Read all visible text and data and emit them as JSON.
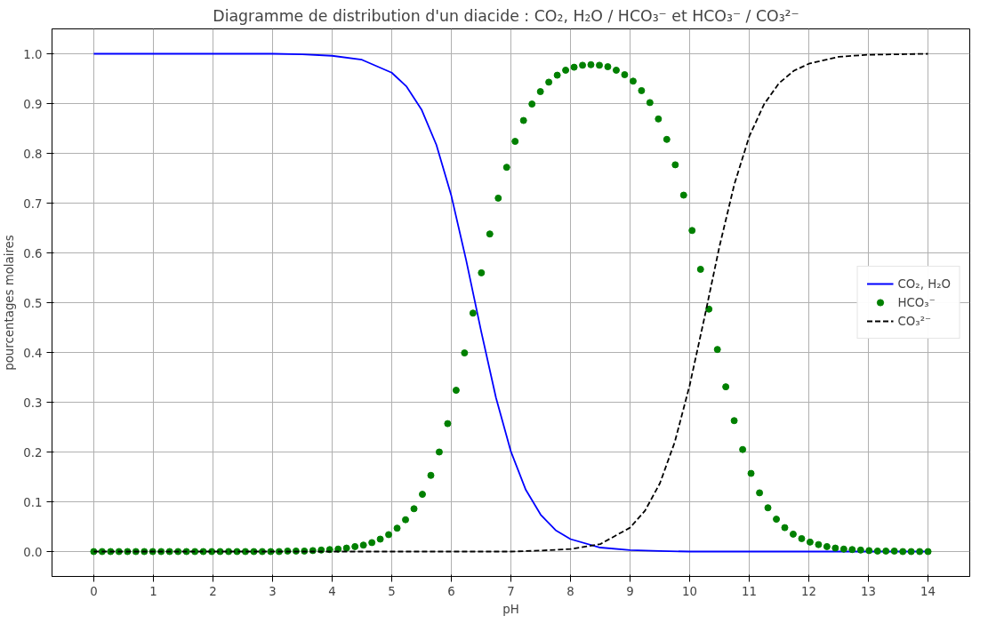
{
  "chart_data": {
    "type": "line",
    "title": "Diagramme de distribution d'un diacide : CO₂, H₂O / HCO₃⁻  et HCO₃⁻  / CO₃²⁻",
    "xlabel": "pH",
    "ylabel": "pourcentages molaires",
    "xlim": [
      -0.7,
      14.7
    ],
    "ylim": [
      -0.05,
      1.05
    ],
    "xticks": [
      0,
      1,
      2,
      3,
      4,
      5,
      6,
      7,
      8,
      9,
      10,
      11,
      12,
      13,
      14
    ],
    "yticks": [
      {
        "value": 0,
        "label": "0.0"
      },
      {
        "value": 0.1,
        "label": "0.1"
      },
      {
        "value": 0.2,
        "label": "0.2"
      },
      {
        "value": 0.3,
        "label": "0.3"
      },
      {
        "value": 0.4,
        "label": "0.4"
      },
      {
        "value": 0.5,
        "label": "0.5"
      },
      {
        "value": 0.6,
        "label": "0.6"
      },
      {
        "value": 0.7,
        "label": "0.7"
      },
      {
        "value": 0.8,
        "label": "0.8"
      },
      {
        "value": 0.9,
        "label": "0.9"
      },
      {
        "value": 1,
        "label": "1.0"
      }
    ],
    "grid": true,
    "legend": "right",
    "series": [
      {
        "name": "CO₂, H₂O",
        "color": "#0000ff",
        "line_style": "solid",
        "x": [
          0,
          1,
          2,
          3,
          3.5,
          4,
          4.5,
          5,
          5.25,
          5.5,
          5.75,
          6,
          6.25,
          6.5,
          6.75,
          7,
          7.25,
          7.5,
          7.75,
          8,
          8.5,
          9,
          9.5,
          10,
          11,
          12,
          13,
          14
        ],
        "values": [
          1.0,
          1.0,
          1.0,
          1.0,
          0.999,
          0.996,
          0.988,
          0.962,
          0.934,
          0.888,
          0.817,
          0.715,
          0.585,
          0.443,
          0.309,
          0.201,
          0.124,
          0.074,
          0.043,
          0.025,
          0.008,
          0.003,
          0.001,
          0.0,
          0.0,
          0.0,
          0.0,
          0.0
        ]
      },
      {
        "name": "HCO₃⁻",
        "type": "scatter",
        "marker": "circle",
        "color": "#008000",
        "x": [
          0,
          0.141,
          0.283,
          0.424,
          0.566,
          0.707,
          0.848,
          0.99,
          1.131,
          1.273,
          1.414,
          1.556,
          1.697,
          1.838,
          1.98,
          2.121,
          2.263,
          2.404,
          2.545,
          2.687,
          2.828,
          2.97,
          3.111,
          3.253,
          3.394,
          3.535,
          3.677,
          3.818,
          3.96,
          4.101,
          4.242,
          4.384,
          4.525,
          4.667,
          4.808,
          4.949,
          5.091,
          5.232,
          5.374,
          5.515,
          5.657,
          5.798,
          5.939,
          6.081,
          6.222,
          6.364,
          6.505,
          6.646,
          6.788,
          6.929,
          7.071,
          7.212,
          7.354,
          7.495,
          7.636,
          7.778,
          7.919,
          8.061,
          8.202,
          8.343,
          8.485,
          8.626,
          8.768,
          8.909,
          9.051,
          9.192,
          9.333,
          9.475,
          9.616,
          9.758,
          9.899,
          10.04,
          10.182,
          10.323,
          10.465,
          10.606,
          10.747,
          10.889,
          11.03,
          11.172,
          11.313,
          11.455,
          11.596,
          11.737,
          11.879,
          12.02,
          12.162,
          12.303,
          12.444,
          12.586,
          12.727,
          12.869,
          13.01,
          13.152,
          13.293,
          13.434,
          13.576,
          13.717,
          13.859,
          14
        ],
        "values": [
          0,
          0,
          0,
          0,
          0,
          0,
          0,
          0,
          0,
          0,
          0,
          0,
          0,
          0,
          0,
          0,
          0,
          0,
          0,
          0,
          0,
          0,
          0,
          0.001,
          0.001,
          0.001,
          0.002,
          0.003,
          0.004,
          0.005,
          0.007,
          0.01,
          0.013,
          0.018,
          0.025,
          0.034,
          0.047,
          0.064,
          0.086,
          0.115,
          0.153,
          0.2,
          0.257,
          0.324,
          0.399,
          0.479,
          0.56,
          0.638,
          0.71,
          0.772,
          0.824,
          0.866,
          0.899,
          0.924,
          0.943,
          0.957,
          0.967,
          0.973,
          0.977,
          0.978,
          0.977,
          0.974,
          0.967,
          0.958,
          0.945,
          0.926,
          0.902,
          0.869,
          0.828,
          0.777,
          0.716,
          0.645,
          0.567,
          0.487,
          0.406,
          0.331,
          0.263,
          0.205,
          0.157,
          0.118,
          0.088,
          0.065,
          0.048,
          0.035,
          0.026,
          0.019,
          0.014,
          0.01,
          0.007,
          0.005,
          0.004,
          0.003,
          0.002,
          0.001,
          0.001,
          0.001,
          0,
          0,
          0,
          0
        ]
      },
      {
        "name": "CO₃²⁻",
        "color": "#000000",
        "line_style": "dashed",
        "x": [
          0,
          1,
          2,
          3,
          4,
          5,
          6,
          7,
          7.5,
          8,
          8.5,
          9,
          9.25,
          9.5,
          9.75,
          10,
          10.25,
          10.5,
          10.75,
          11,
          11.25,
          11.5,
          11.75,
          12,
          12.5,
          13,
          13.5,
          14
        ],
        "values": [
          0,
          0,
          0,
          0,
          0,
          0,
          0,
          0,
          0.002,
          0.005,
          0.015,
          0.048,
          0.082,
          0.137,
          0.22,
          0.334,
          0.471,
          0.613,
          0.738,
          0.834,
          0.899,
          0.941,
          0.966,
          0.98,
          0.994,
          0.998,
          0.999,
          1.0
        ]
      }
    ]
  }
}
